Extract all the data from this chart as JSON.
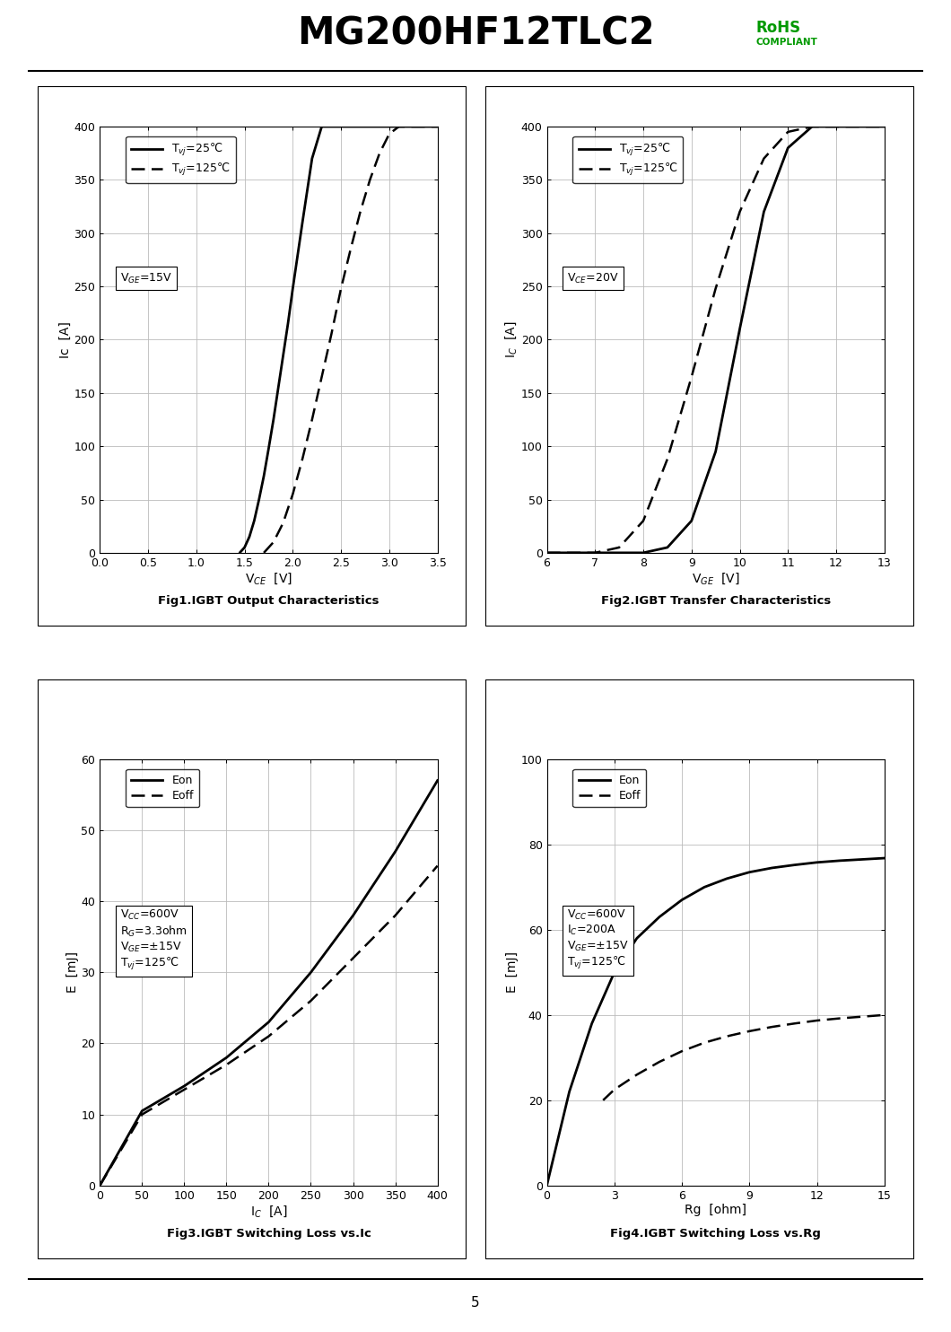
{
  "title": "MG200HF12TLC2",
  "page_number": "5",
  "fig1": {
    "caption": "Fig1.IGBT Output Characteristics",
    "xlabel": "V$_{CE}$  [V]",
    "ylabel": "Ic  [A]",
    "xlim": [
      0,
      3.5
    ],
    "ylim": [
      0,
      400
    ],
    "xticks": [
      0,
      0.5,
      1,
      1.5,
      2,
      2.5,
      3,
      3.5
    ],
    "yticks": [
      0,
      50,
      100,
      150,
      200,
      250,
      300,
      350,
      400
    ],
    "legend_label1": "T$_{vj}$=25℃",
    "legend_label2": "T$_{vj}$=125℃",
    "box_label": "V$_{GE}$=15V",
    "curve25_x": [
      1.45,
      1.5,
      1.55,
      1.6,
      1.65,
      1.7,
      1.75,
      1.8,
      1.85,
      1.9,
      1.95,
      2.0,
      2.1,
      2.2,
      2.3,
      2.4,
      2.5,
      2.6,
      2.7,
      2.8,
      2.9,
      3.0,
      3.1,
      3.2,
      3.3,
      3.4,
      3.5
    ],
    "curve25_y": [
      0,
      5,
      15,
      30,
      50,
      72,
      98,
      125,
      155,
      185,
      215,
      248,
      310,
      370,
      400,
      400,
      400,
      400,
      400,
      400,
      400,
      400,
      400,
      400,
      400,
      400,
      400
    ],
    "curve125_x": [
      1.7,
      1.8,
      1.9,
      2.0,
      2.1,
      2.2,
      2.3,
      2.4,
      2.5,
      2.6,
      2.7,
      2.8,
      2.9,
      3.0,
      3.1,
      3.2,
      3.3,
      3.4,
      3.5
    ],
    "curve125_y": [
      0,
      10,
      28,
      55,
      88,
      125,
      165,
      205,
      248,
      285,
      320,
      350,
      375,
      393,
      400,
      400,
      400,
      400,
      400
    ]
  },
  "fig2": {
    "caption": "Fig2.IGBT Transfer Characteristics",
    "xlabel": "V$_{GE}$  [V]",
    "ylabel": "I$_C$  [A]",
    "xlim": [
      6,
      13
    ],
    "ylim": [
      0,
      400
    ],
    "xticks": [
      6,
      7,
      8,
      9,
      10,
      11,
      12,
      13
    ],
    "yticks": [
      0,
      50,
      100,
      150,
      200,
      250,
      300,
      350,
      400
    ],
    "legend_label1": "T$_{vj}$=25℃",
    "legend_label2": "T$_{vj}$=125℃",
    "box_label": "V$_{CE}$=20V",
    "curve25_x": [
      6,
      7,
      7.5,
      8,
      8.5,
      9,
      9.5,
      10,
      10.5,
      11,
      11.5,
      12,
      12.5,
      13
    ],
    "curve25_y": [
      0,
      0,
      0,
      0,
      5,
      30,
      95,
      210,
      320,
      380,
      400,
      400,
      400,
      400
    ],
    "curve125_x": [
      6,
      7,
      7.5,
      8,
      8.5,
      9,
      9.5,
      10,
      10.5,
      11,
      11.5,
      12,
      12.5,
      13
    ],
    "curve125_y": [
      0,
      0,
      5,
      30,
      88,
      165,
      248,
      320,
      370,
      395,
      400,
      400,
      400,
      400
    ]
  },
  "fig3": {
    "caption": "Fig3.IGBT Switching Loss vs.Ic",
    "xlabel": "I$_C$  [A]",
    "ylabel": "E  [mJ]",
    "xlim": [
      0,
      400
    ],
    "ylim": [
      0,
      60
    ],
    "xticks": [
      0,
      50,
      100,
      150,
      200,
      250,
      300,
      350,
      400
    ],
    "yticks": [
      0,
      10,
      20,
      30,
      40,
      50,
      60
    ],
    "legend_label1": "Eon",
    "legend_label2": "Eoff",
    "box_lines": [
      "V$_{CC}$=600V",
      "R$_G$=3.3ohm",
      "V$_{GE}$=±15V",
      "T$_{vj}$=125℃"
    ],
    "eon_x": [
      0,
      50,
      100,
      150,
      200,
      250,
      300,
      350,
      400
    ],
    "eon_y": [
      0,
      10.5,
      14,
      18,
      23,
      30,
      38,
      47,
      57
    ],
    "eoff_x": [
      0,
      50,
      100,
      150,
      200,
      250,
      300,
      350,
      400
    ],
    "eoff_y": [
      0,
      10,
      13.5,
      17,
      21,
      26,
      32,
      38,
      45
    ]
  },
  "fig4": {
    "caption": "Fig4.IGBT Switching Loss vs.Rg",
    "xlabel": "Rg  [ohm]",
    "ylabel": "E  [mJ]",
    "xlim": [
      0,
      15
    ],
    "ylim": [
      0,
      100
    ],
    "xticks": [
      0,
      3,
      6,
      9,
      12,
      15
    ],
    "yticks": [
      0,
      20,
      40,
      60,
      80,
      100
    ],
    "legend_label1": "Eon",
    "legend_label2": "Eoff",
    "box_lines": [
      "V$_{CC}$=600V",
      "I$_C$=200A",
      "V$_{GE}$=±15V",
      "T$_{vj}$=125℃"
    ],
    "eon_x": [
      0,
      1,
      2,
      3,
      4,
      5,
      6,
      7,
      8,
      9,
      10,
      11,
      12,
      13,
      14,
      15
    ],
    "eon_y": [
      0,
      22,
      38,
      50,
      58,
      63,
      67,
      70,
      72,
      73.5,
      74.5,
      75.2,
      75.8,
      76.2,
      76.5,
      76.8
    ],
    "eoff_x": [
      2.5,
      3,
      4,
      5,
      6,
      7,
      8,
      9,
      10,
      11,
      12,
      13,
      14,
      15
    ],
    "eoff_y": [
      20,
      22.5,
      26,
      29,
      31.5,
      33.5,
      35,
      36.2,
      37.2,
      38,
      38.7,
      39.2,
      39.6,
      40
    ]
  }
}
